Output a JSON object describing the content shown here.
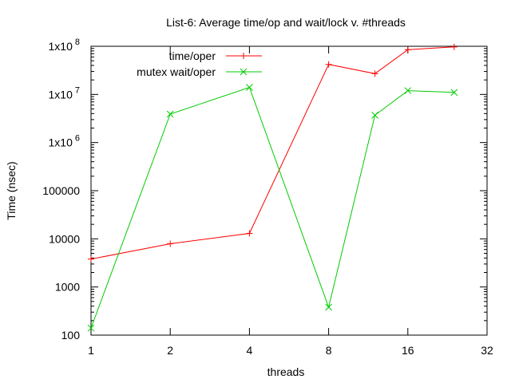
{
  "chart_data": {
    "type": "line",
    "title": "List-6: Average time/op and wait/lock v. #threads",
    "xlabel": "threads",
    "ylabel": "Time (nsec)",
    "x_scale": "log2",
    "y_scale": "log10",
    "xlim": [
      1,
      32
    ],
    "ylim": [
      100,
      100000000
    ],
    "x_ticks": [
      {
        "value": 1,
        "label": "1"
      },
      {
        "value": 2,
        "label": "2"
      },
      {
        "value": 4,
        "label": "4"
      },
      {
        "value": 8,
        "label": "8"
      },
      {
        "value": 16,
        "label": "16"
      },
      {
        "value": 32,
        "label": "32"
      }
    ],
    "y_ticks": [
      {
        "value": 100,
        "label": "100",
        "sup": ""
      },
      {
        "value": 1000,
        "label": "1000",
        "sup": ""
      },
      {
        "value": 10000,
        "label": "10000",
        "sup": ""
      },
      {
        "value": 100000,
        "label": "100000",
        "sup": ""
      },
      {
        "value": 1000000,
        "label": "1x10",
        "sup": "6"
      },
      {
        "value": 10000000,
        "label": "1x10",
        "sup": "7"
      },
      {
        "value": 100000000,
        "label": "1x10",
        "sup": "8"
      }
    ],
    "legend_position": "top-left",
    "series": [
      {
        "name": "time/oper",
        "color": "#ff0000",
        "marker": "plus",
        "x": [
          1,
          2,
          4,
          8,
          12,
          16,
          24
        ],
        "y": [
          3800,
          7900,
          13000,
          42000000,
          27000000,
          85000000,
          97000000
        ]
      },
      {
        "name": "mutex wait/oper",
        "color": "#00cc00",
        "marker": "cross",
        "x": [
          1,
          2,
          4,
          8,
          12,
          16,
          24
        ],
        "y": [
          140,
          3900000,
          14000000,
          380,
          3700000,
          12000000,
          11000000
        ]
      }
    ]
  }
}
